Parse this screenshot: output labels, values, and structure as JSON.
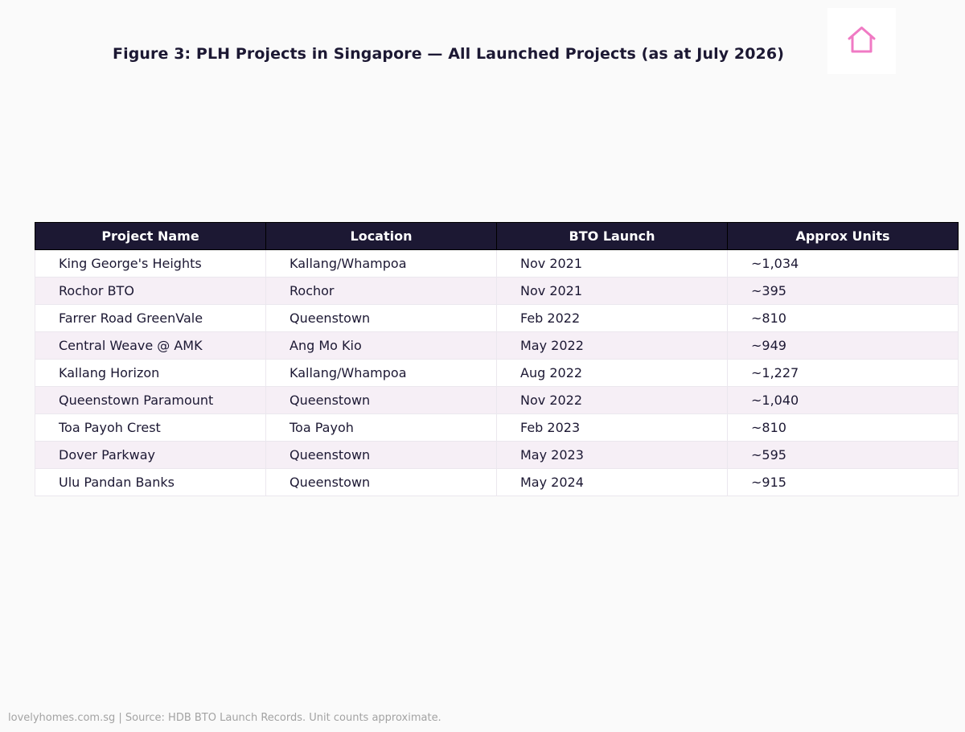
{
  "title": "Figure 3: PLH Projects in Singapore — All Launched Projects (as at July 2026)",
  "logo": {
    "icon": "house-outline-icon",
    "color": "#f07ac4"
  },
  "colors": {
    "header_bg": "#1c1833",
    "header_text": "#ffffff",
    "row_alt_bg": "#f6eff6",
    "row_bg": "#ffffff",
    "text": "#1c1833"
  },
  "chart_data": {
    "type": "table",
    "columns": [
      "Project Name",
      "Location",
      "BTO Launch",
      "Approx Units"
    ],
    "rows": [
      [
        "King George's Heights",
        "Kallang/Whampoa",
        "Nov 2021",
        "~1,034"
      ],
      [
        "Rochor BTO",
        "Rochor",
        "Nov 2021",
        "~395"
      ],
      [
        "Farrer Road GreenVale",
        "Queenstown",
        "Feb 2022",
        "~810"
      ],
      [
        "Central Weave @ AMK",
        "Ang Mo Kio",
        "May 2022",
        "~949"
      ],
      [
        "Kallang Horizon",
        "Kallang/Whampoa",
        "Aug 2022",
        "~1,227"
      ],
      [
        "Queenstown Paramount",
        "Queenstown",
        "Nov 2022",
        "~1,040"
      ],
      [
        "Toa Payoh Crest",
        "Toa Payoh",
        "Feb 2023",
        "~810"
      ],
      [
        "Dover Parkway",
        "Queenstown",
        "May 2023",
        "~595"
      ],
      [
        "Ulu Pandan Banks",
        "Queenstown",
        "May 2024",
        "~915"
      ]
    ]
  },
  "footer": "lovelyhomes.com.sg  |  Source: HDB BTO Launch Records. Unit counts approximate."
}
